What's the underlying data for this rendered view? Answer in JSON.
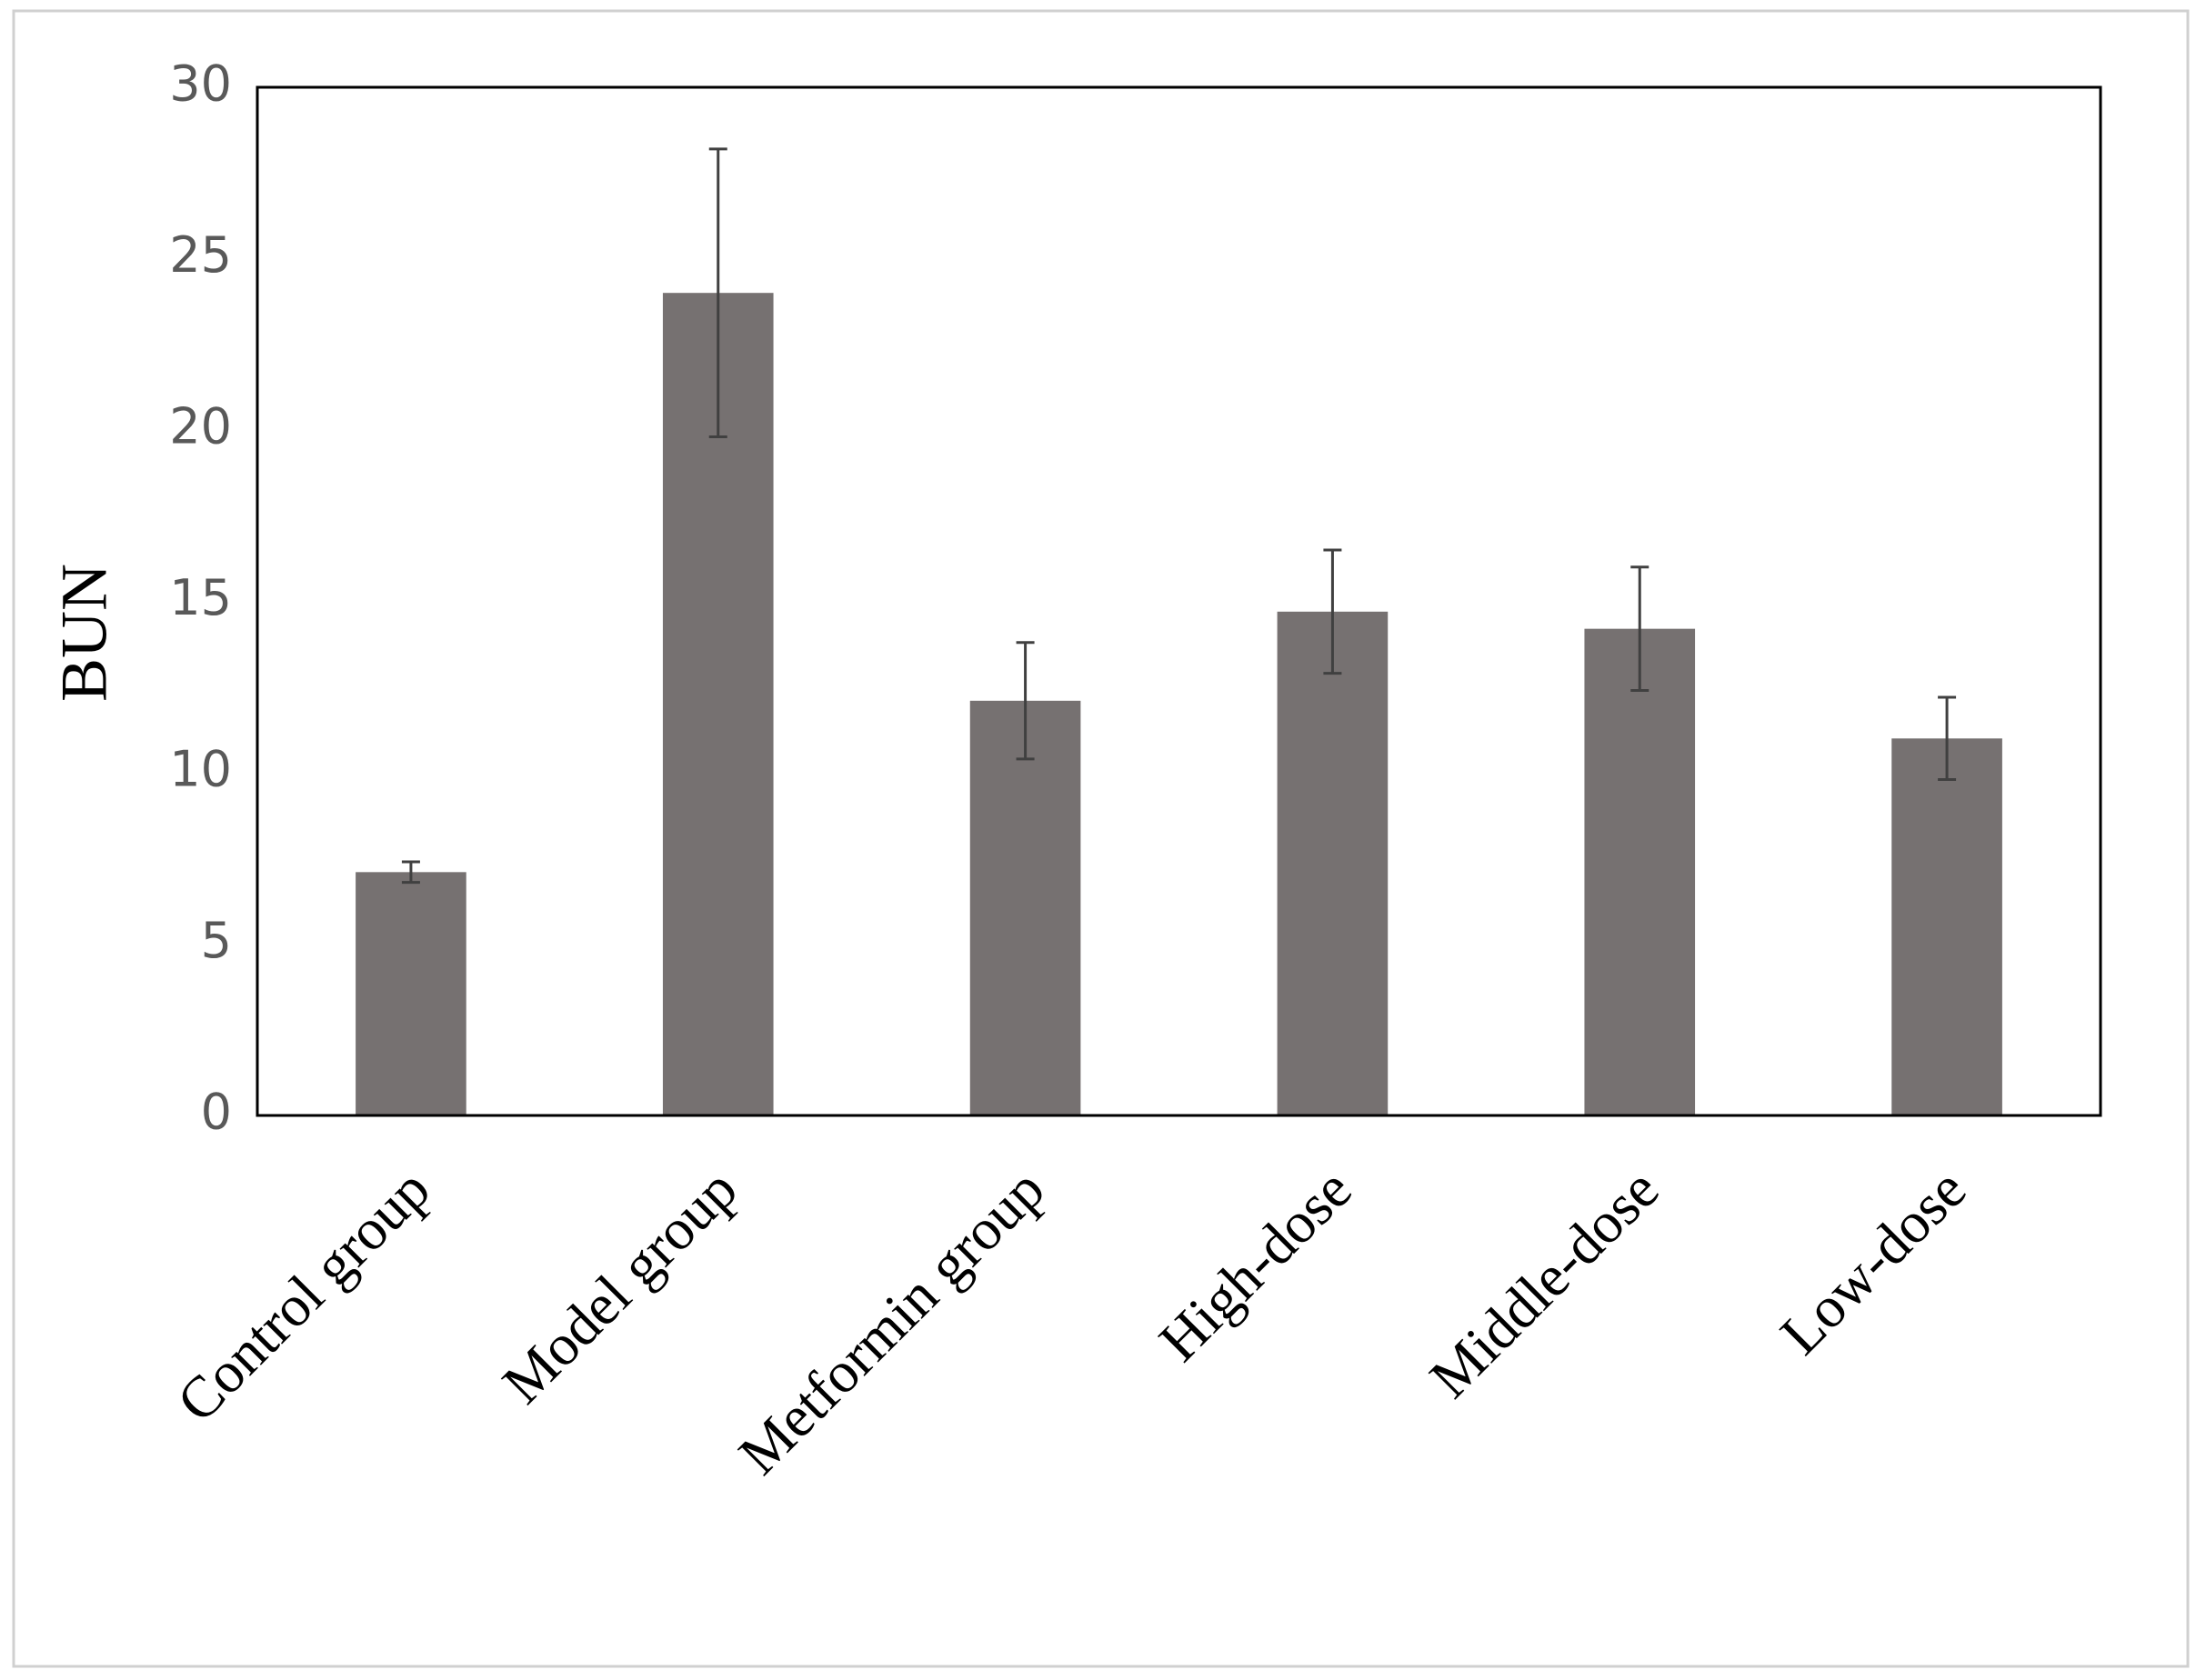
{
  "chart_data": {
    "type": "bar",
    "y_label": "BUN",
    "categories": [
      "Control group",
      "Model group",
      "Metformin group",
      "High-dose",
      "Middle-dose",
      "Low-dose"
    ],
    "values": [
      7.1,
      24.0,
      12.1,
      14.7,
      14.2,
      11.0
    ],
    "errors": [
      0.3,
      4.2,
      1.7,
      1.8,
      1.8,
      1.2
    ],
    "color": "#767171",
    "error_color": "#404040",
    "ylim": [
      0,
      30
    ],
    "yticks": [
      0,
      5,
      10,
      15,
      20,
      25,
      30
    ],
    "grid": false
  }
}
